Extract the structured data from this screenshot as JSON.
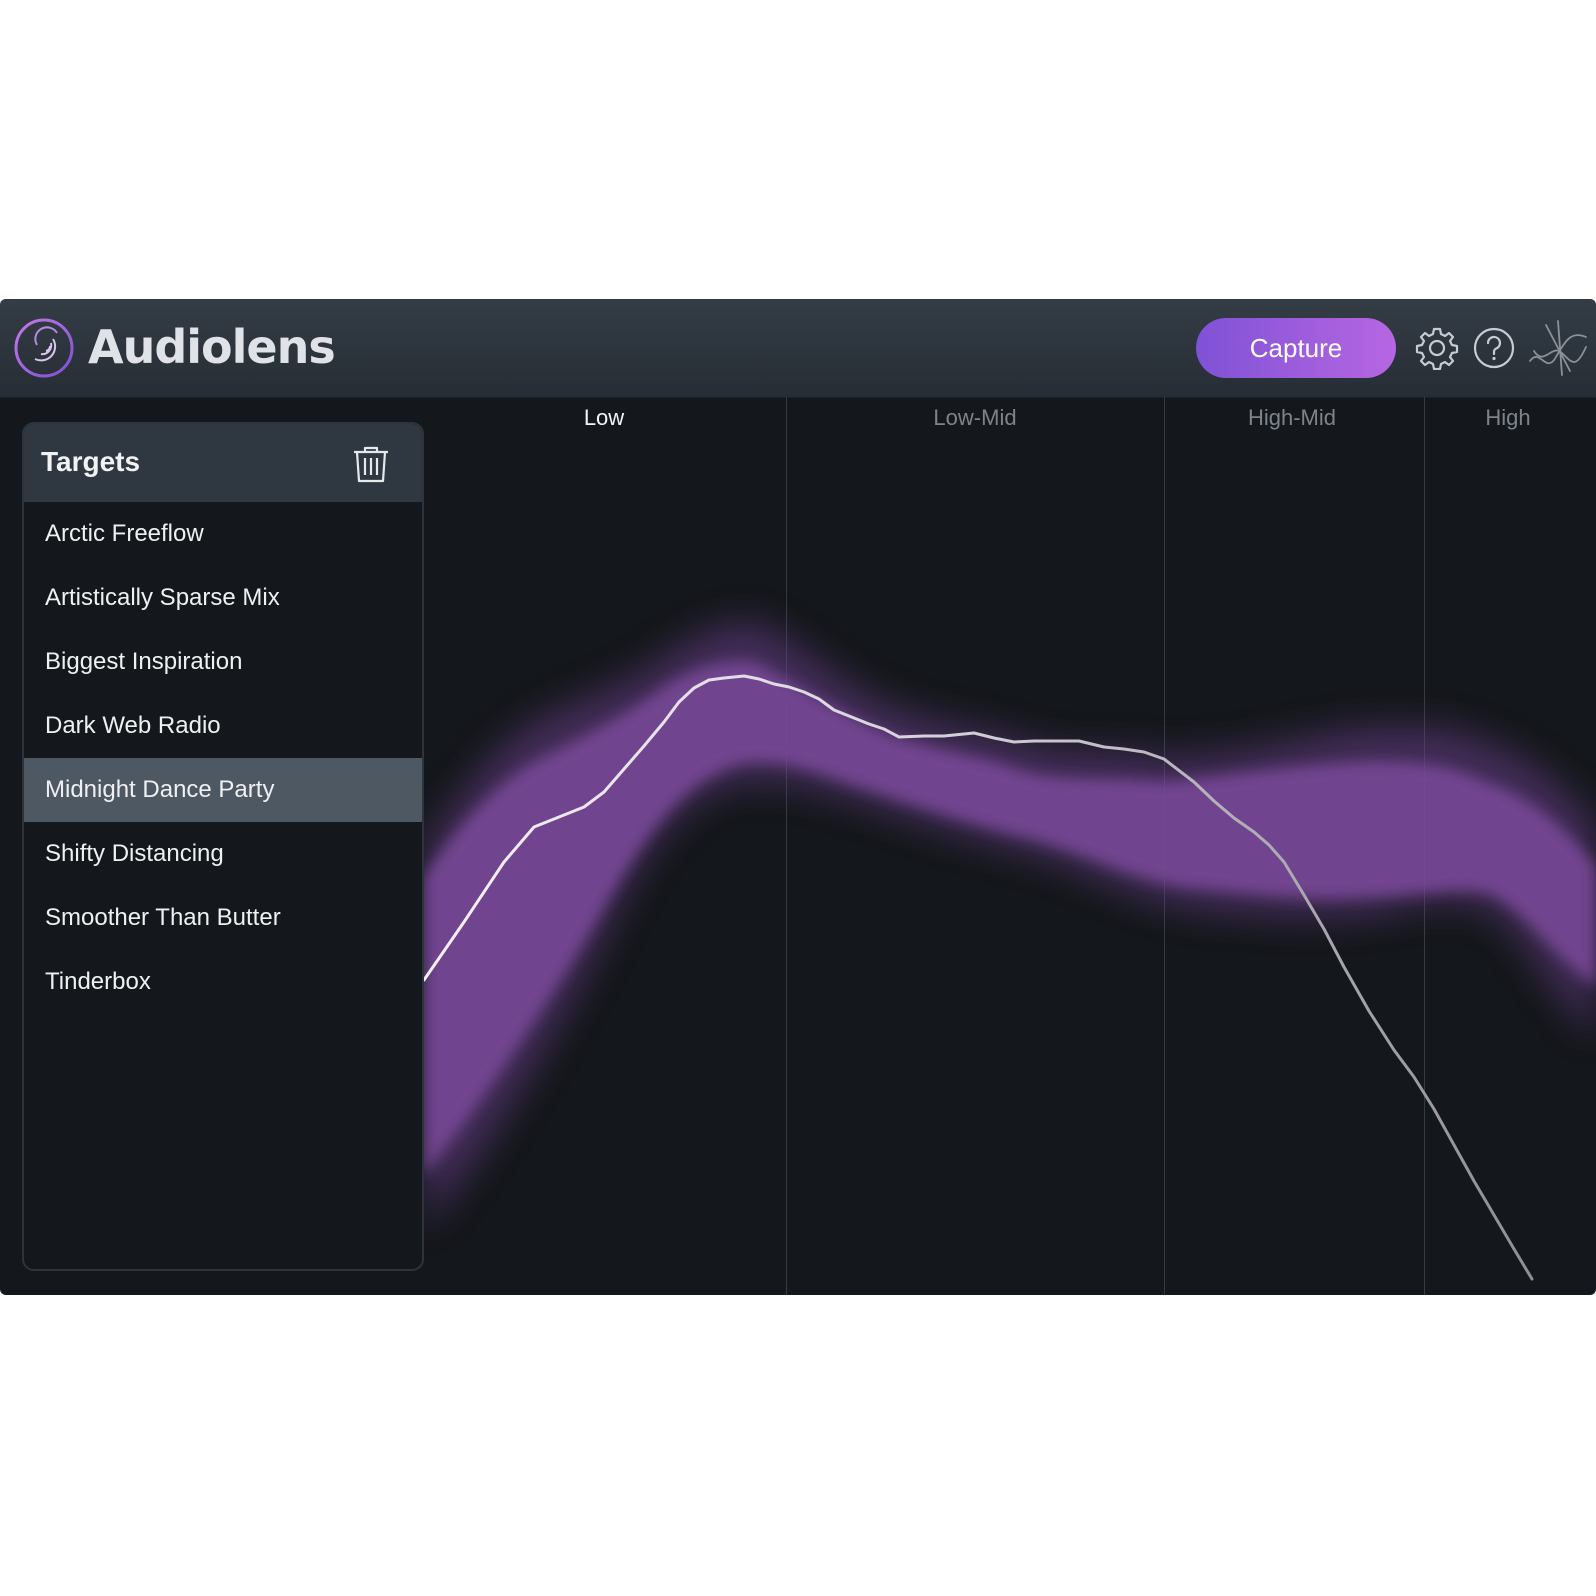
{
  "app": {
    "title": "Audiolens",
    "capture_label": "Capture"
  },
  "icons": {
    "logo": "audiolens-logo-icon",
    "settings": "gear-icon",
    "help": "question-circle-icon",
    "extra": "waveform-logo-icon",
    "delete": "trash-icon"
  },
  "colors": {
    "accent_start": "#7f52d6",
    "accent_end": "#b766e2",
    "band_fill": "#7a4a9a",
    "selected_row": "#4e5862",
    "background": "#14171b"
  },
  "targets": {
    "title": "Targets",
    "selected": "Midnight Dance Party",
    "items": [
      "Arctic Freeflow",
      "Artistically Sparse Mix",
      "Biggest Inspiration",
      "Dark Web Radio",
      "Midnight Dance Party",
      "Shifty Distancing",
      "Smoother Than Butter",
      "Tinderbox"
    ]
  },
  "graph": {
    "bands": [
      {
        "label": "Low",
        "active": true
      },
      {
        "label": "Low-Mid",
        "active": false
      },
      {
        "label": "High-Mid",
        "active": false
      },
      {
        "label": "High",
        "active": false
      }
    ]
  }
}
